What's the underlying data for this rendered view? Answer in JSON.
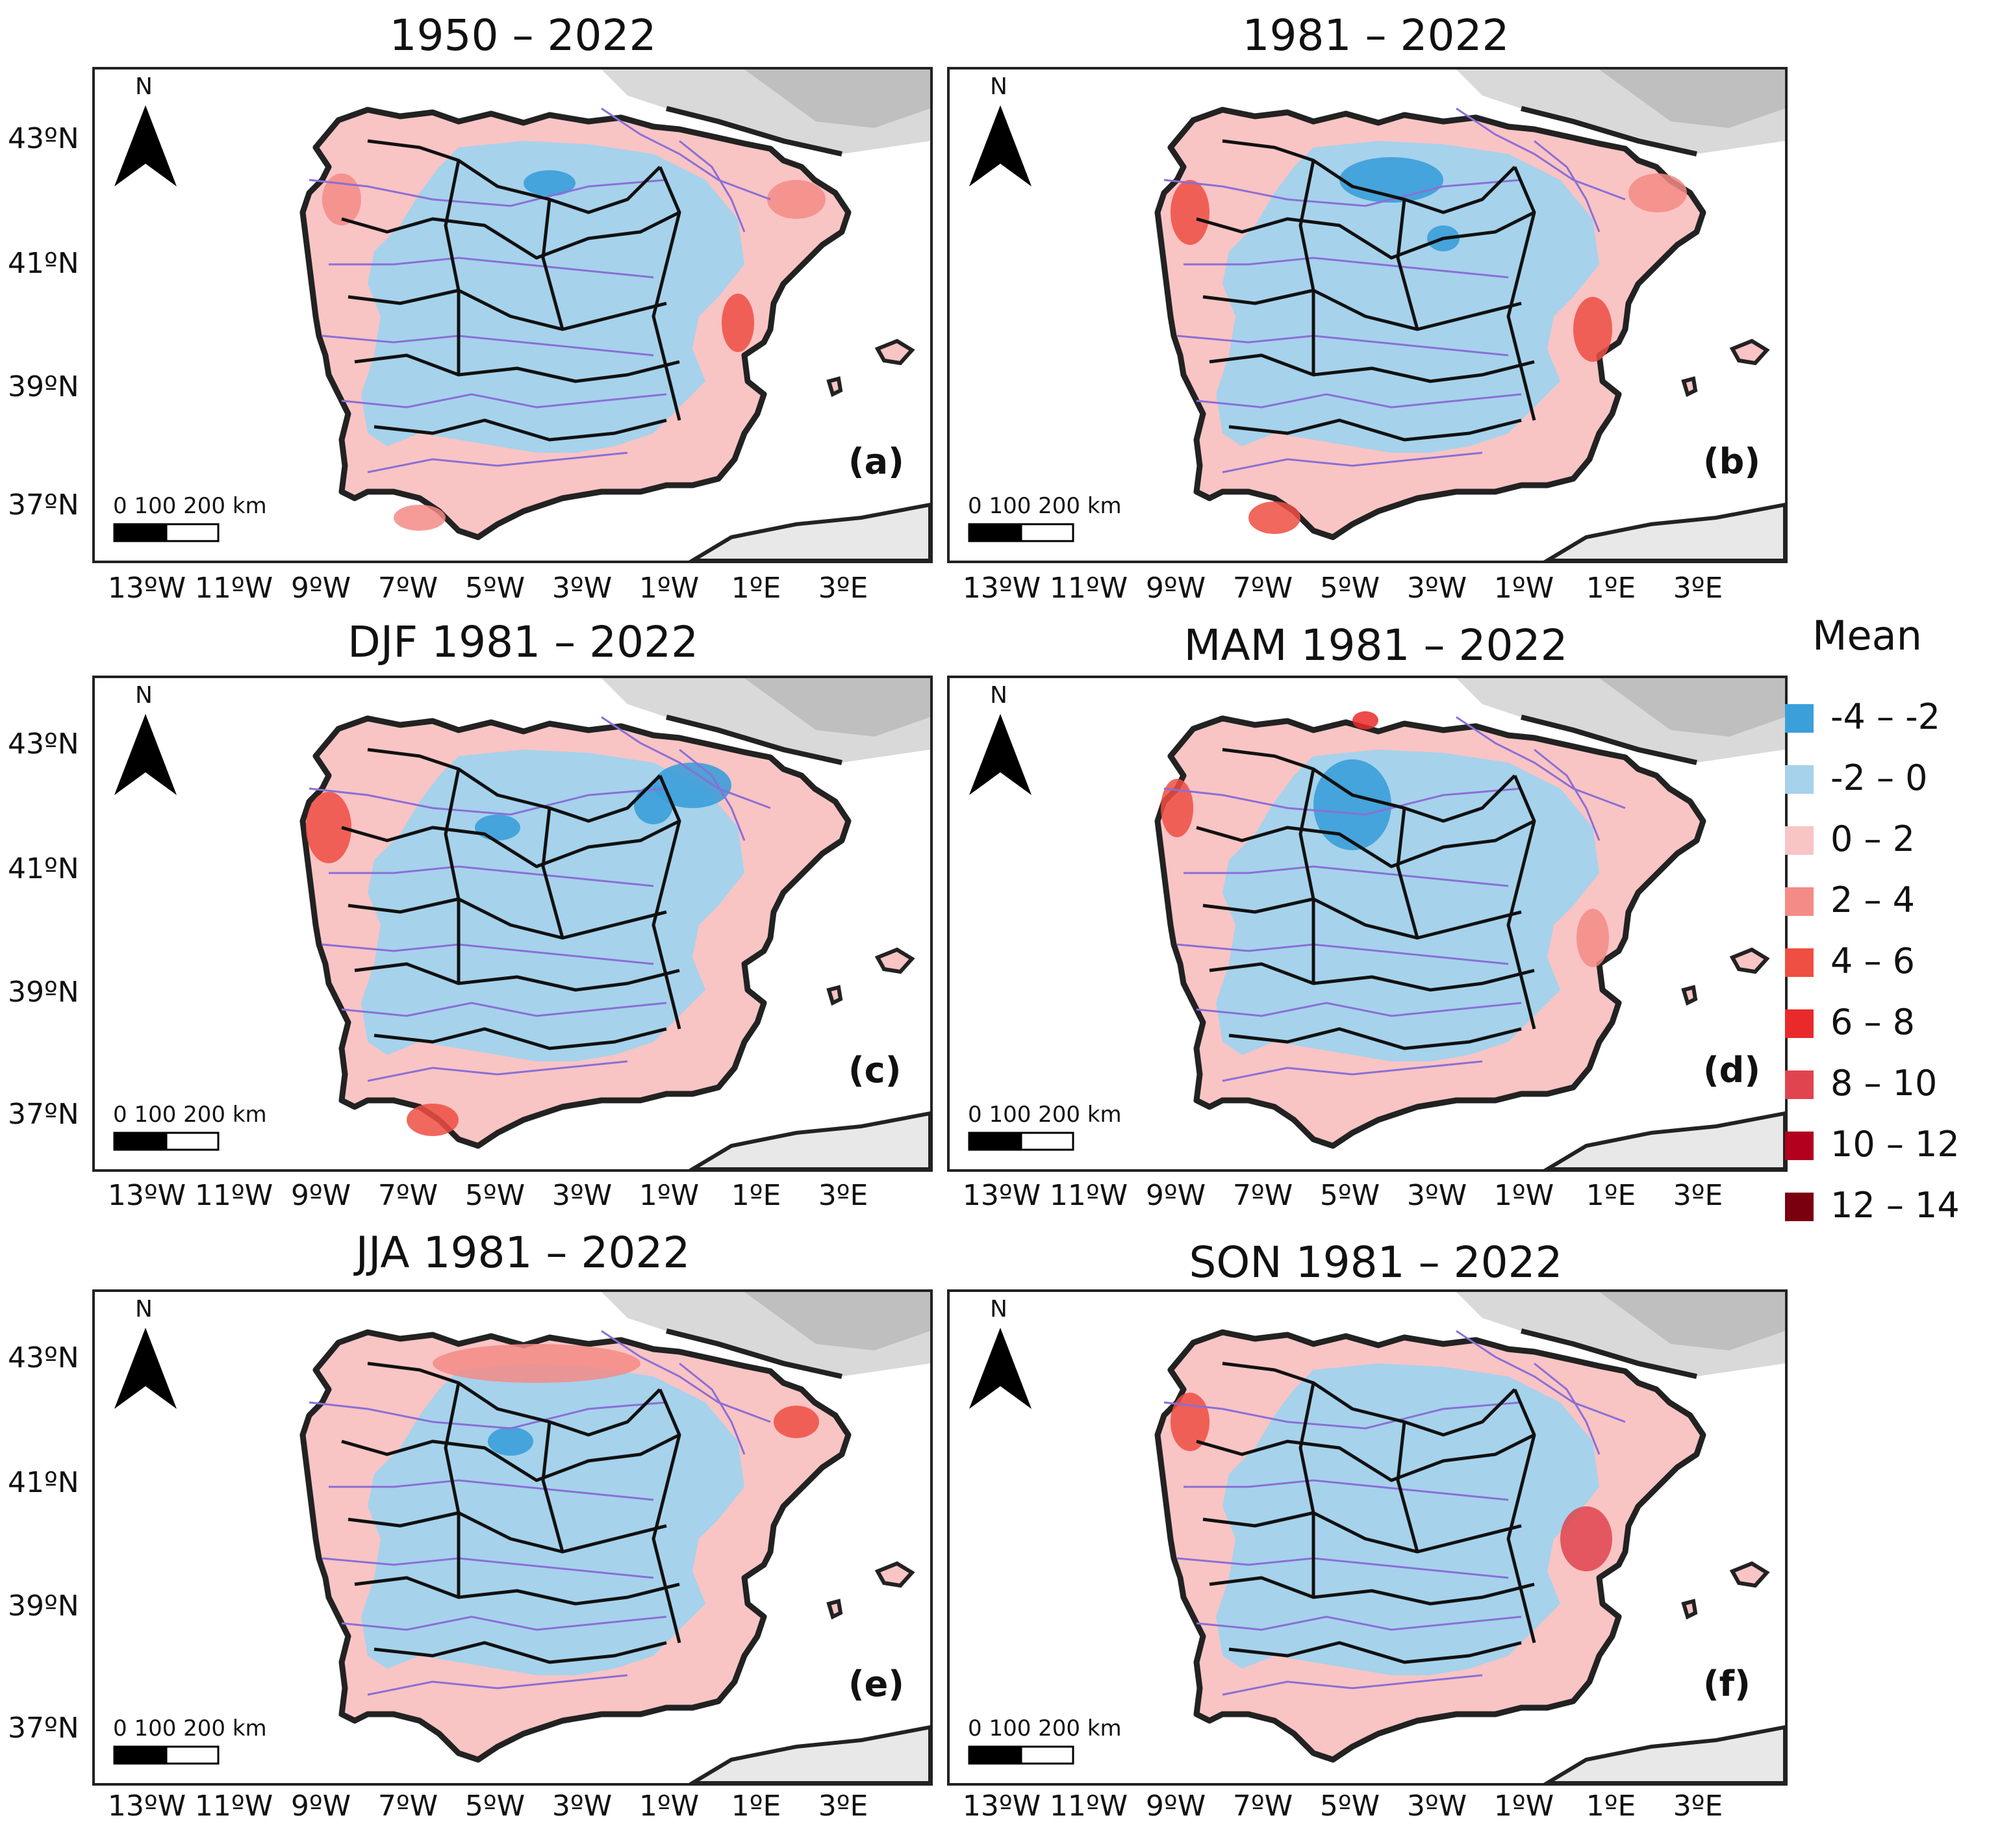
{
  "panels": [
    {
      "title": "1950 – 2022",
      "letter": "(a)"
    },
    {
      "title": "1981 – 2022",
      "letter": "(b)"
    },
    {
      "title": "DJF 1981 – 2022",
      "letter": "(c)"
    },
    {
      "title": "MAM 1981 – 2022",
      "letter": "(d)"
    },
    {
      "title": "JJA 1981 – 2022",
      "letter": "(e)"
    },
    {
      "title": "SON 1981 – 2022",
      "letter": "(f)"
    }
  ],
  "lat_labels": [
    "43ºN",
    "41ºN",
    "39ºN",
    "37ºN"
  ],
  "lon_labels": [
    "13ºW",
    "11ºW",
    "9ºW",
    "7ºW",
    "5ºW",
    "3ºW",
    "1ºW",
    "1ºE",
    "3ºE"
  ],
  "north_label": "N",
  "scale_label": "0   100 200 km",
  "legend": {
    "title": "Mean",
    "items": [
      {
        "label": "-4 – -2",
        "color": "#3b9fd9"
      },
      {
        "label": "-2 – 0",
        "color": "#a6d2ec"
      },
      {
        "label": "0 – 2",
        "color": "#f9c4c4"
      },
      {
        "label": "2 – 4",
        "color": "#f48b86"
      },
      {
        "label": "4 – 6",
        "color": "#ef4e42"
      },
      {
        "label": "6 – 8",
        "color": "#ea2a2a"
      },
      {
        "label": "8 – 10",
        "color": "#e0444f"
      },
      {
        "label": "10 – 12",
        "color": "#b3001e"
      },
      {
        "label": "12 – 14",
        "color": "#7a0010"
      }
    ]
  }
}
